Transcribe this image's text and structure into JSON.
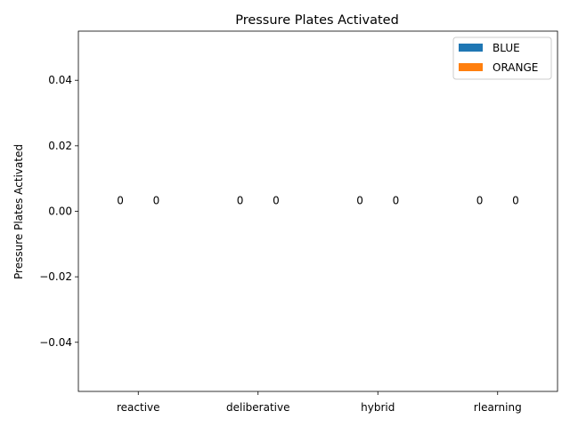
{
  "chart_data": {
    "type": "bar",
    "title": "Pressure Plates Activated",
    "xlabel": "",
    "ylabel": "Pressure Plates Activated",
    "categories": [
      "reactive",
      "deliberative",
      "hybrid",
      "rlearning"
    ],
    "series": [
      {
        "name": "BLUE",
        "color": "#1f77b4",
        "values": [
          0,
          0,
          0,
          0
        ],
        "labels": [
          "0",
          "0",
          "0",
          "0"
        ]
      },
      {
        "name": "ORANGE",
        "color": "#ff7f0e",
        "values": [
          0,
          0,
          0,
          0
        ],
        "labels": [
          "0",
          "0",
          "0",
          "0"
        ]
      }
    ],
    "ylim": [
      -0.055,
      0.055
    ],
    "yticks": [
      -0.04,
      -0.02,
      0.0,
      0.02,
      0.04
    ],
    "ytick_labels": [
      "−0.04",
      "−0.02",
      "0.00",
      "0.02",
      "0.04"
    ],
    "grid": false,
    "legend_position": "top-right"
  }
}
